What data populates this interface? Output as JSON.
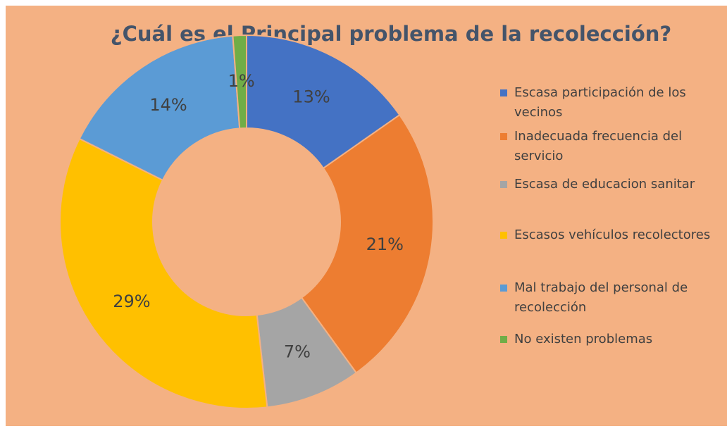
{
  "chart_data": {
    "type": "donut",
    "title": "¿Cuál es el Principal problema de la recolección?",
    "categories": [
      "Escasa participación de los vecinos",
      "Inadecuada frecuencia del servicio",
      "Escasa de educacion sanitar",
      "Escasos vehículos recolectores",
      "Mal trabajo del personal de recolección",
      "No existen problemas"
    ],
    "values": [
      13,
      21,
      7,
      29,
      14,
      1
    ],
    "value_labels": [
      "13%",
      "21%",
      "7%",
      "29%",
      "14%",
      "1%"
    ],
    "colors": [
      "#4472c4",
      "#ed7d31",
      "#a5a5a5",
      "#ffc000",
      "#5b9bd5",
      "#70ad47"
    ],
    "legend": "right"
  }
}
